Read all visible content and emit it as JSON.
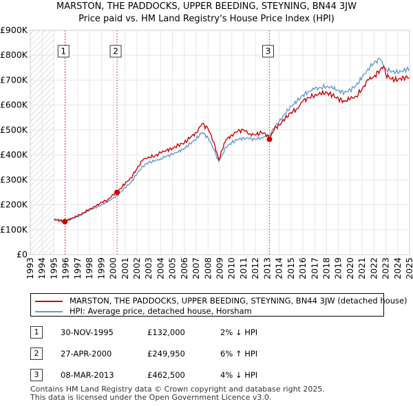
{
  "title_line1": "MARSTON, THE PADDOCKS, UPPER BEEDING, STEYNING, BN44 3JW",
  "title_line2": "Price paid vs. HM Land Registry's House Price Index (HPI)",
  "chart_data": {
    "type": "line",
    "xlim": [
      1993,
      2025
    ],
    "ylim": [
      0,
      900000
    ],
    "x_ticks": [
      "1993",
      "1994",
      "1995",
      "1996",
      "1997",
      "1998",
      "1999",
      "2000",
      "2001",
      "2002",
      "2003",
      "2004",
      "2005",
      "2006",
      "2007",
      "2008",
      "2009",
      "2010",
      "2011",
      "2012",
      "2013",
      "2014",
      "2015",
      "2016",
      "2017",
      "2018",
      "2019",
      "2020",
      "2021",
      "2022",
      "2023",
      "2024",
      "2025"
    ],
    "y_ticks": [
      {
        "value": 0,
        "label": "£0"
      },
      {
        "value": 100000,
        "label": "£100K"
      },
      {
        "value": 200000,
        "label": "£200K"
      },
      {
        "value": 300000,
        "label": "£300K"
      },
      {
        "value": 400000,
        "label": "£400K"
      },
      {
        "value": 500000,
        "label": "£500K"
      },
      {
        "value": 600000,
        "label": "£600K"
      },
      {
        "value": 700000,
        "label": "£700K"
      },
      {
        "value": 800000,
        "label": "£800K"
      },
      {
        "value": 900000,
        "label": "£900K"
      }
    ],
    "hatched_before": 1995.0,
    "series": [
      {
        "name": "MARSTON, THE PADDOCKS, UPPER BEEDING, STEYNING, BN44 3JW (detached house)",
        "color": "#cc0000",
        "x": [
          1995.0,
          1995.9,
          1996.5,
          1997.0,
          1997.5,
          1998.0,
          1998.5,
          1999.0,
          1999.5,
          2000.0,
          2000.32,
          2000.6,
          2001.0,
          2001.5,
          2002.0,
          2002.5,
          2003.0,
          2003.5,
          2004.0,
          2004.5,
          2005.0,
          2005.5,
          2006.0,
          2006.5,
          2007.0,
          2007.5,
          2008.0,
          2008.5,
          2008.9,
          2009.2,
          2009.5,
          2010.0,
          2010.5,
          2011.0,
          2011.5,
          2012.0,
          2012.5,
          2013.0,
          2013.18,
          2013.6,
          2014.0,
          2014.5,
          2015.0,
          2015.5,
          2016.0,
          2016.5,
          2017.0,
          2017.5,
          2018.0,
          2018.5,
          2019.0,
          2019.5,
          2020.0,
          2020.5,
          2021.0,
          2021.5,
          2022.0,
          2022.5,
          2022.8,
          2023.0,
          2023.5,
          2024.0,
          2024.5,
          2025.0
        ],
        "y": [
          141000,
          132000,
          146000,
          155000,
          168000,
          183000,
          193000,
          210000,
          218000,
          240000,
          249950,
          265000,
          285000,
          308000,
          345000,
          380000,
          392000,
          395000,
          408000,
          420000,
          425000,
          440000,
          448000,
          470000,
          490000,
          525000,
          505000,
          450000,
          380000,
          420000,
          460000,
          480000,
          495000,
          500000,
          485000,
          480000,
          490000,
          480000,
          462500,
          505000,
          520000,
          545000,
          570000,
          585000,
          615000,
          630000,
          640000,
          645000,
          650000,
          640000,
          625000,
          615000,
          625000,
          635000,
          665000,
          700000,
          715000,
          740000,
          755000,
          720000,
          705000,
          700000,
          712000,
          710000
        ]
      },
      {
        "name": "HPI: Average price, detached house, Horsham",
        "color": "#6699cc",
        "x": [
          1995.0,
          1995.9,
          1996.5,
          1997.0,
          1997.5,
          1998.0,
          1998.5,
          1999.0,
          1999.5,
          2000.0,
          2000.32,
          2000.6,
          2001.0,
          2001.5,
          2002.0,
          2002.5,
          2003.0,
          2003.5,
          2004.0,
          2004.5,
          2005.0,
          2005.5,
          2006.0,
          2006.5,
          2007.0,
          2007.5,
          2008.0,
          2008.5,
          2008.9,
          2009.2,
          2009.5,
          2010.0,
          2010.5,
          2011.0,
          2011.5,
          2012.0,
          2012.5,
          2013.0,
          2013.18,
          2013.6,
          2014.0,
          2014.5,
          2015.0,
          2015.5,
          2016.0,
          2016.5,
          2017.0,
          2017.5,
          2018.0,
          2018.5,
          2019.0,
          2019.5,
          2020.0,
          2020.5,
          2021.0,
          2021.5,
          2022.0,
          2022.5,
          2022.8,
          2023.0,
          2023.5,
          2024.0,
          2024.5,
          2025.0
        ],
        "y": [
          143000,
          135000,
          145000,
          152000,
          165000,
          178000,
          188000,
          200000,
          210000,
          228000,
          235000,
          250000,
          268000,
          290000,
          325000,
          355000,
          370000,
          375000,
          385000,
          395000,
          402000,
          415000,
          425000,
          445000,
          465000,
          490000,
          470000,
          420000,
          375000,
          400000,
          430000,
          450000,
          462000,
          468000,
          465000,
          462000,
          470000,
          475000,
          480000,
          510000,
          535000,
          565000,
          595000,
          615000,
          640000,
          655000,
          665000,
          670000,
          675000,
          668000,
          658000,
          650000,
          660000,
          680000,
          710000,
          745000,
          770000,
          785000,
          760000,
          745000,
          735000,
          730000,
          740000,
          745000
        ]
      }
    ],
    "sales": [
      {
        "n": "1",
        "x": 1995.92,
        "price": 132000,
        "date": "30-NOV-1995",
        "price_label": "£132,000",
        "hpi": "2% ↓ HPI"
      },
      {
        "n": "2",
        "x": 2000.32,
        "price": 249950,
        "date": "27-APR-2000",
        "price_label": "£249,950",
        "hpi": "6% ↑ HPI"
      },
      {
        "n": "3",
        "x": 2013.18,
        "price": 462500,
        "date": "08-MAR-2013",
        "price_label": "£462,500",
        "hpi": "4% ↓ HPI"
      }
    ]
  },
  "legend": {
    "property_label": "MARSTON, THE PADDOCKS, UPPER BEEDING, STEYNING, BN44 3JW (detached house)",
    "hpi_label": "HPI: Average price, detached house, Horsham"
  },
  "footer": {
    "line1": "Contains HM Land Registry data © Crown copyright and database right 2025.",
    "line2": "This data is licensed under the Open Government Licence v3.0."
  }
}
